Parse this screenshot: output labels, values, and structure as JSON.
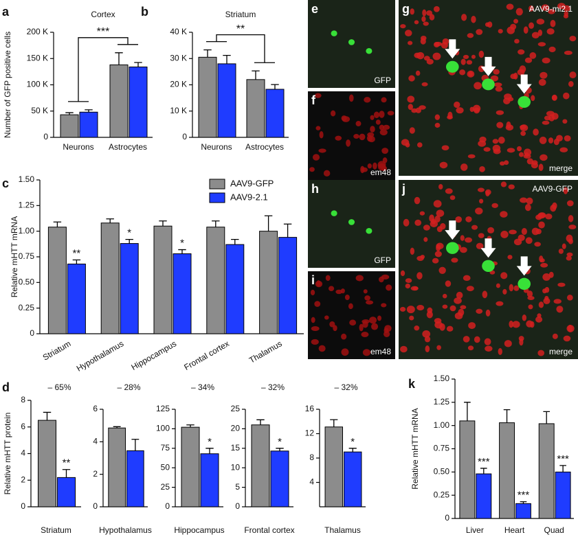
{
  "chart_data": [
    {
      "type": "bar",
      "panel": "a",
      "title": "Cortex",
      "ylabel": "Number of GFP positive cells",
      "categories": [
        "Neurons",
        "Astrocytes"
      ],
      "series": [
        {
          "color": "#8c8c8c",
          "values": [
            43000,
            138000
          ],
          "errors": [
            4000,
            23000
          ]
        },
        {
          "color": "#1f3cff",
          "values": [
            48000,
            134000
          ],
          "errors": [
            4500,
            8500
          ]
        }
      ],
      "ylim": [
        0,
        200000
      ],
      "yticks": [
        0,
        {
          "value": 50000,
          "label": "50 K"
        },
        {
          "value": 100000,
          "label": "100 K"
        },
        {
          "value": 150000,
          "label": "150 K"
        },
        {
          "value": 200000,
          "label": "200 K"
        }
      ],
      "annotation": "***"
    },
    {
      "type": "bar",
      "panel": "b",
      "title": "Striatum",
      "categories": [
        "Neurons",
        "Astrocytes"
      ],
      "series": [
        {
          "color": "#8c8c8c",
          "values": [
            30500,
            22000
          ],
          "errors": [
            2800,
            3300
          ]
        },
        {
          "color": "#1f3cff",
          "values": [
            28000,
            18300
          ],
          "errors": [
            3200,
            1800
          ]
        }
      ],
      "ylim": [
        0,
        40000
      ],
      "yticks": [
        0,
        {
          "value": 10000,
          "label": "10 K"
        },
        {
          "value": 20000,
          "label": "20 K"
        },
        {
          "value": 30000,
          "label": "30 K"
        },
        {
          "value": 40000,
          "label": "40 K"
        }
      ],
      "annotation": "**"
    },
    {
      "type": "bar",
      "panel": "c",
      "ylabel": "Relative mHTT mRNA",
      "legend": "top-right",
      "categories": [
        "Striatum",
        "Hypothalamus",
        "Hippocampus",
        "Frontal cortex",
        "Thalamus"
      ],
      "series": [
        {
          "name": "AAV9-GFP",
          "color": "#8c8c8c",
          "values": [
            1.04,
            1.08,
            1.05,
            1.04,
            1.0
          ],
          "errors": [
            0.05,
            0.04,
            0.05,
            0.06,
            0.15
          ]
        },
        {
          "name": "AAV9-2.1",
          "color": "#1f3cff",
          "values": [
            0.68,
            0.88,
            0.78,
            0.87,
            0.94
          ],
          "errors": [
            0.04,
            0.04,
            0.04,
            0.05,
            0.13
          ],
          "significance": [
            "**",
            "*",
            "*",
            null,
            null
          ]
        }
      ],
      "ylim": [
        0,
        1.5
      ],
      "yticks": [
        0,
        0.25,
        {
          "value": 0.5,
          "label": "0.50"
        },
        0.75,
        {
          "value": 1,
          "label": "1.00"
        },
        1.25,
        {
          "value": 1.5,
          "label": "1.50"
        }
      ]
    },
    {
      "type": "bar",
      "panel": "d",
      "ylabel": "Relative mHTT protein",
      "annotation": "– 65%",
      "categories": [
        "Striatum"
      ],
      "series": [
        {
          "color": "#8c8c8c",
          "values": [
            6.5
          ],
          "errors": [
            0.6
          ]
        },
        {
          "color": "#1f3cff",
          "values": [
            2.2
          ],
          "errors": [
            0.6
          ],
          "significance": [
            "**"
          ]
        }
      ],
      "ylim": [
        0,
        8
      ],
      "yticks": [
        0,
        2,
        4,
        6,
        8
      ]
    },
    {
      "type": "bar",
      "annotation": "– 28%",
      "categories": [
        "Hypothalamus"
      ],
      "series": [
        {
          "color": "#8c8c8c",
          "values": [
            4.85
          ],
          "errors": [
            0.08
          ]
        },
        {
          "color": "#1f3cff",
          "values": [
            3.45
          ],
          "errors": [
            0.7
          ]
        }
      ],
      "ylim": [
        0,
        6
      ],
      "yticks": [
        0,
        2,
        4,
        6
      ]
    },
    {
      "type": "bar",
      "annotation": "– 34%",
      "categories": [
        "Hippocampus"
      ],
      "series": [
        {
          "color": "#8c8c8c",
          "values": [
            102
          ],
          "errors": [
            3
          ]
        },
        {
          "color": "#1f3cff",
          "values": [
            68
          ],
          "errors": [
            7
          ],
          "significance": [
            "*"
          ]
        }
      ],
      "ylim": [
        0,
        125
      ],
      "yticks": [
        0,
        25,
        50,
        75,
        100,
        125
      ]
    },
    {
      "type": "bar",
      "annotation": "– 32%",
      "categories": [
        "Frontal cortex"
      ],
      "series": [
        {
          "color": "#8c8c8c",
          "values": [
            21
          ],
          "errors": [
            1.3
          ]
        },
        {
          "color": "#1f3cff",
          "values": [
            14.3
          ],
          "errors": [
            0.7
          ],
          "significance": [
            "*"
          ]
        }
      ],
      "ylim": [
        0,
        25
      ],
      "yticks": [
        0,
        5,
        10,
        15,
        20,
        25
      ]
    },
    {
      "type": "bar",
      "annotation": "– 32%",
      "categories": [
        "Thalamus"
      ],
      "series": [
        {
          "color": "#8c8c8c",
          "values": [
            13.1
          ],
          "errors": [
            1.2
          ]
        },
        {
          "color": "#1f3cff",
          "values": [
            9.0
          ],
          "errors": [
            0.6
          ],
          "significance": [
            "*"
          ]
        }
      ],
      "ylim": [
        0,
        16
      ],
      "yticks": [
        4,
        8,
        12,
        16
      ]
    },
    {
      "type": "bar",
      "panel": "k",
      "ylabel": "Relative mHTT mRNA",
      "categories": [
        "Liver",
        "Heart",
        "Quad"
      ],
      "series": [
        {
          "color": "#8c8c8c",
          "values": [
            1.05,
            1.03,
            1.02
          ],
          "errors": [
            0.2,
            0.14,
            0.13
          ]
        },
        {
          "color": "#1f3cff",
          "values": [
            0.48,
            0.16,
            0.5
          ],
          "errors": [
            0.06,
            0.02,
            0.07
          ],
          "significance": [
            "***",
            "***",
            "***"
          ]
        }
      ],
      "ylim": [
        0,
        1.5
      ],
      "yticks": [
        0,
        0.25,
        {
          "value": 0.5,
          "label": "0.50"
        },
        0.75,
        {
          "value": 1,
          "label": "1.00"
        },
        1.25,
        {
          "value": 1.5,
          "label": "1.50"
        }
      ]
    }
  ],
  "image_panels": [
    {
      "letter": "e",
      "labels": [
        "GFP"
      ]
    },
    {
      "letter": "f",
      "labels": [
        "em48"
      ]
    },
    {
      "letter": "g",
      "labels": [
        "AAV9-mi2.1",
        "merge"
      ]
    },
    {
      "letter": "h",
      "labels": [
        "GFP"
      ]
    },
    {
      "letter": "i",
      "labels": [
        "em48"
      ]
    },
    {
      "letter": "j",
      "labels": [
        "AAV9-GFP",
        "merge"
      ]
    }
  ]
}
